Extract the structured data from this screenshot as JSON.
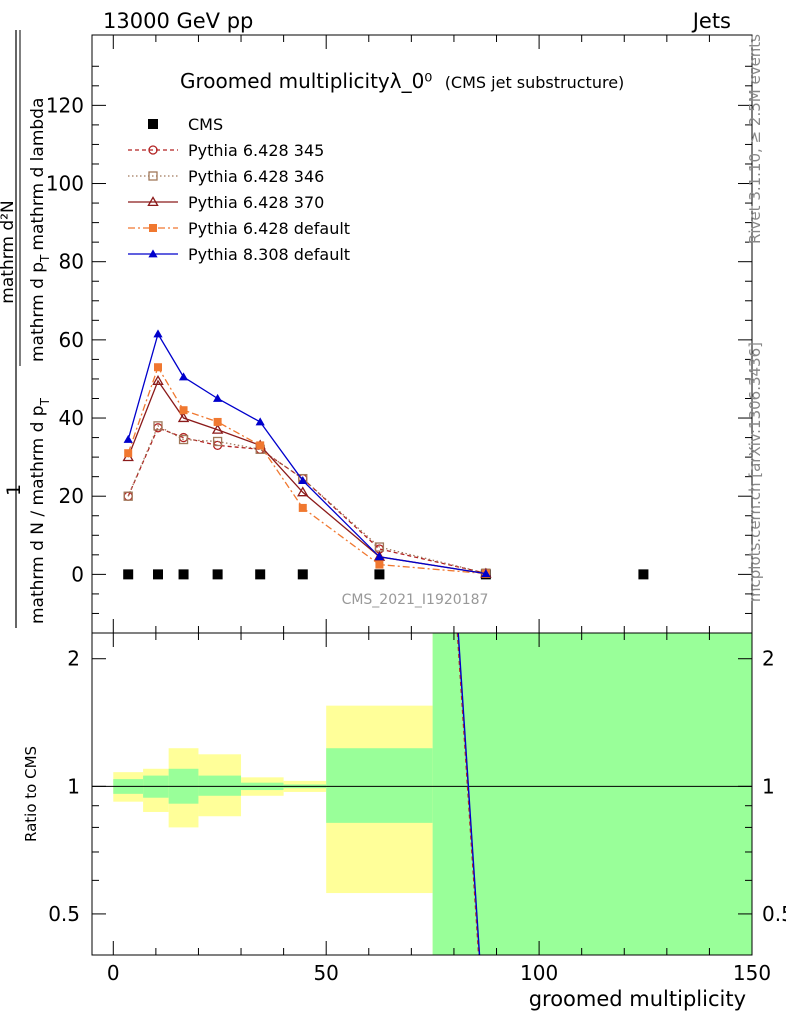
{
  "header": {
    "left": "13000 GeV pp",
    "right": "Jets"
  },
  "side_labels": {
    "rivet": "Rivet 3.1.10, ≥ 2.5M events",
    "mcplots": "mcplots.cern.ch [arXiv:1306.3436]"
  },
  "chart_data": {
    "type": "line",
    "title": "Groomed multiplicityλ_0⁰",
    "subtitle": "(CMS jet substructure)",
    "watermark": "CMS_2021_I1920187",
    "ylabel_top": {
      "numerator": "1",
      "denominator": "mathrm d N / mathrm d p",
      "denominator_sub": "T",
      "frac2_numerator": "mathrm d²N",
      "frac2_denominator": "mathrm d p",
      "frac2_denominator_sub": "T",
      "frac2_denominator_tail": "mathrm d lambda"
    },
    "ylabel_bottom": "Ratio to CMS",
    "xlabel": "groomed multiplicity",
    "xlim": [
      -5,
      150
    ],
    "ylim_top": [
      -15,
      138
    ],
    "ylim_bottom": [
      0.4,
      2.3
    ],
    "xticks": [
      0,
      50,
      100,
      150
    ],
    "yticks_top": [
      0,
      20,
      40,
      60,
      80,
      100,
      120
    ],
    "yticks_bottom": [
      0.5,
      1,
      2
    ],
    "series": [
      {
        "name": "CMS",
        "color": "#000000",
        "marker": "square",
        "x": [
          3.5,
          10.5,
          16.5,
          24.5,
          34.5,
          44.5,
          62.5,
          87.5,
          124.5
        ],
        "y": [
          0,
          0,
          0,
          0,
          0,
          0,
          0,
          0,
          0
        ]
      },
      {
        "name": "Pythia 6.428 345",
        "color": "#b22222",
        "marker": "open-circle",
        "dash": "4,3",
        "x": [
          3.5,
          10.5,
          16.5,
          24.5,
          34.5,
          44.5,
          62.5,
          87.5
        ],
        "y": [
          20,
          37.5,
          35,
          33,
          32,
          24.5,
          6.5,
          0.3
        ]
      },
      {
        "name": "Pythia 6.428 346",
        "color": "#a0785a",
        "marker": "open-square",
        "dash": "1.5,2.5",
        "x": [
          3.5,
          10.5,
          16.5,
          24.5,
          34.5,
          44.5,
          62.5,
          87.5
        ],
        "y": [
          20,
          38,
          34.5,
          34,
          32,
          24.5,
          7,
          0.3
        ]
      },
      {
        "name": "Pythia 6.428 370",
        "color": "#8b1a1a",
        "marker": "open-triangle",
        "dash": "",
        "x": [
          3.5,
          10.5,
          16.5,
          24.5,
          34.5,
          44.5,
          62.5,
          87.5
        ],
        "y": [
          30,
          49.5,
          40,
          37,
          33,
          21,
          4.5,
          0.2
        ]
      },
      {
        "name": "Pythia 6.428 default",
        "color": "#f07830",
        "marker": "filled-square",
        "dash": "7,3,2,3",
        "x": [
          3.5,
          10.5,
          16.5,
          24.5,
          34.5,
          44.5,
          62.5,
          87.5
        ],
        "y": [
          31,
          53,
          42,
          39,
          33,
          17,
          2.5,
          0.2
        ]
      },
      {
        "name": "Pythia 8.308 default",
        "color": "#0000cc",
        "marker": "filled-triangle",
        "dash": "",
        "x": [
          3.5,
          10.5,
          16.5,
          24.5,
          34.5,
          44.5,
          62.5,
          87.5
        ],
        "y": [
          34.5,
          61.5,
          50.5,
          45,
          39,
          24,
          4.5,
          0.2
        ]
      }
    ],
    "ratio_bands": [
      {
        "x0": 0,
        "x1": 7,
        "stat_lo": 0.96,
        "stat_hi": 1.04,
        "tot_lo": 0.92,
        "tot_hi": 1.08
      },
      {
        "x0": 7,
        "x1": 13,
        "stat_lo": 0.94,
        "stat_hi": 1.06,
        "tot_lo": 0.87,
        "tot_hi": 1.1
      },
      {
        "x0": 13,
        "x1": 20,
        "stat_lo": 0.91,
        "stat_hi": 1.1,
        "tot_lo": 0.8,
        "tot_hi": 1.23
      },
      {
        "x0": 20,
        "x1": 30,
        "stat_lo": 0.95,
        "stat_hi": 1.06,
        "tot_lo": 0.85,
        "tot_hi": 1.19
      },
      {
        "x0": 30,
        "x1": 40,
        "stat_lo": 0.98,
        "stat_hi": 1.02,
        "tot_lo": 0.95,
        "tot_hi": 1.05
      },
      {
        "x0": 40,
        "x1": 50,
        "stat_lo": 0.99,
        "stat_hi": 1.01,
        "tot_lo": 0.97,
        "tot_hi": 1.03
      },
      {
        "x0": 50,
        "x1": 75,
        "stat_lo": 0.82,
        "stat_hi": 1.23,
        "tot_lo": 0.56,
        "tot_hi": 1.55
      },
      {
        "x0": 75,
        "x1": 150,
        "stat_lo": 0.0,
        "stat_hi": 99,
        "tot_lo": 0.0,
        "tot_hi": 99
      }
    ],
    "ratio_line": {
      "x": [
        81,
        86
      ],
      "y": [
        2.4,
        0.36
      ]
    },
    "colors": {
      "stat_band": "#99ff99",
      "total_band": "#ffff99"
    }
  }
}
